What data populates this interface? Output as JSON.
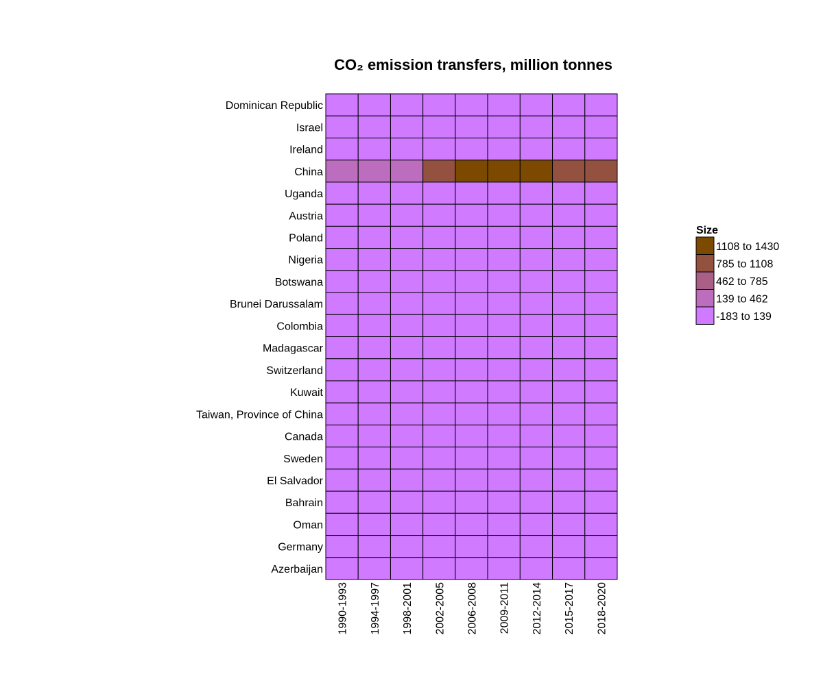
{
  "chart_data": {
    "type": "heatmap",
    "title": "CO₂ emission transfers, million tonnes",
    "xlabel": "",
    "ylabel": "",
    "columns": [
      "1990-1993",
      "1994-1997",
      "1998-2001",
      "2002-2005",
      "2006-2008",
      "2009-2011",
      "2012-2014",
      "2015-2017",
      "2018-2020"
    ],
    "rows": [
      "Dominican Republic",
      "Israel",
      "Ireland",
      "China",
      "Uganda",
      "Austria",
      "Poland",
      "Nigeria",
      "Botswana",
      "Brunei Darussalam",
      "Colombia",
      "Madagascar",
      "Switzerland",
      "Kuwait",
      "Taiwan, Province of China",
      "Canada",
      "Sweden",
      "El Salvador",
      "Bahrain",
      "Oman",
      "Germany",
      "Azerbaijan"
    ],
    "bins": [
      {
        "label": "1108 to 1430",
        "min": 1108,
        "max": 1430,
        "color": "#7b4a00"
      },
      {
        "label": "785 to 1108",
        "min": 785,
        "max": 1108,
        "color": "#935140"
      },
      {
        "label": "462 to 785",
        "min": 462,
        "max": 785,
        "color": "#a95f86"
      },
      {
        "label": "139 to 462",
        "min": 139,
        "max": 462,
        "color": "#bd6dbe"
      },
      {
        "label": "-183 to 139",
        "min": -183,
        "max": 139,
        "color": "#d07aff"
      }
    ],
    "cell_bins": [
      [
        4,
        4,
        4,
        4,
        4,
        4,
        4,
        4,
        4
      ],
      [
        4,
        4,
        4,
        4,
        4,
        4,
        4,
        4,
        4
      ],
      [
        4,
        4,
        4,
        4,
        4,
        4,
        4,
        4,
        4
      ],
      [
        3,
        3,
        3,
        1,
        0,
        0,
        0,
        1,
        1
      ],
      [
        4,
        4,
        4,
        4,
        4,
        4,
        4,
        4,
        4
      ],
      [
        4,
        4,
        4,
        4,
        4,
        4,
        4,
        4,
        4
      ],
      [
        4,
        4,
        4,
        4,
        4,
        4,
        4,
        4,
        4
      ],
      [
        4,
        4,
        4,
        4,
        4,
        4,
        4,
        4,
        4
      ],
      [
        4,
        4,
        4,
        4,
        4,
        4,
        4,
        4,
        4
      ],
      [
        4,
        4,
        4,
        4,
        4,
        4,
        4,
        4,
        4
      ],
      [
        4,
        4,
        4,
        4,
        4,
        4,
        4,
        4,
        4
      ],
      [
        4,
        4,
        4,
        4,
        4,
        4,
        4,
        4,
        4
      ],
      [
        4,
        4,
        4,
        4,
        4,
        4,
        4,
        4,
        4
      ],
      [
        4,
        4,
        4,
        4,
        4,
        4,
        4,
        4,
        4
      ],
      [
        4,
        4,
        4,
        4,
        4,
        4,
        4,
        4,
        4
      ],
      [
        4,
        4,
        4,
        4,
        4,
        4,
        4,
        4,
        4
      ],
      [
        4,
        4,
        4,
        4,
        4,
        4,
        4,
        4,
        4
      ],
      [
        4,
        4,
        4,
        4,
        4,
        4,
        4,
        4,
        4
      ],
      [
        4,
        4,
        4,
        4,
        4,
        4,
        4,
        4,
        4
      ],
      [
        4,
        4,
        4,
        4,
        4,
        4,
        4,
        4,
        4
      ],
      [
        4,
        4,
        4,
        4,
        4,
        4,
        4,
        4,
        4
      ],
      [
        4,
        4,
        4,
        4,
        4,
        4,
        4,
        4,
        4
      ]
    ],
    "legend": {
      "title": "Size",
      "position": "right"
    },
    "grid": false
  }
}
